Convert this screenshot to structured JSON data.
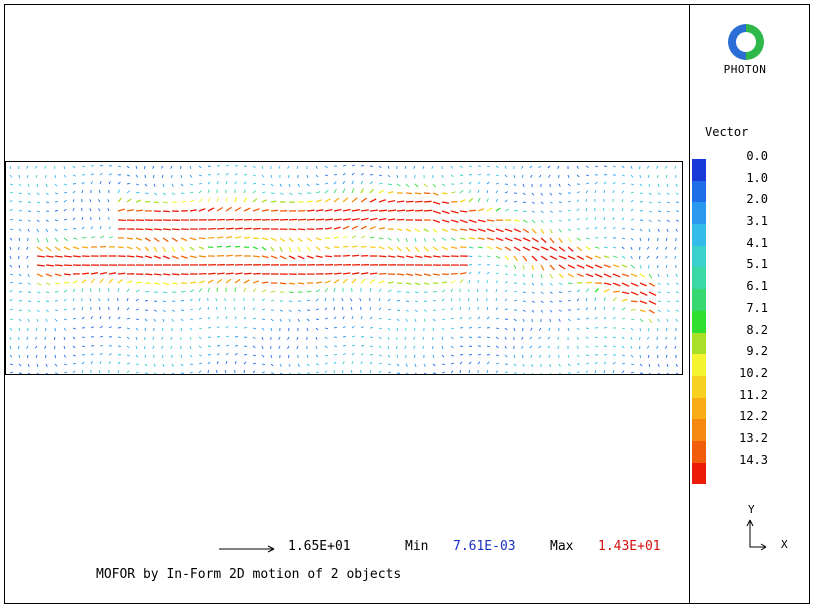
{
  "brand": {
    "logo_text": "PHOTON"
  },
  "legend": {
    "title": "Vector",
    "items": [
      {
        "label": "0.0",
        "color": "#1838d8"
      },
      {
        "label": "1.0",
        "color": "#1f6ee8"
      },
      {
        "label": "2.0",
        "color": "#2a98ee"
      },
      {
        "label": "3.1",
        "color": "#34bce8"
      },
      {
        "label": "4.1",
        "color": "#3ad0cc"
      },
      {
        "label": "5.1",
        "color": "#3ad8a4"
      },
      {
        "label": "6.1",
        "color": "#38d870"
      },
      {
        "label": "7.1",
        "color": "#30e030"
      },
      {
        "label": "8.2",
        "color": "#a8e028"
      },
      {
        "label": "9.2",
        "color": "#f4f430"
      },
      {
        "label": "10.2",
        "color": "#f8d020"
      },
      {
        "label": "11.2",
        "color": "#f8ac18"
      },
      {
        "label": "12.2",
        "color": "#f48810"
      },
      {
        "label": "13.2",
        "color": "#f05e0c"
      },
      {
        "label": "14.3",
        "color": "#ec1c08"
      }
    ]
  },
  "axes": {
    "y": "Y",
    "x": "X"
  },
  "footer": {
    "ref_value": "1.65E+01",
    "min_label": "Min",
    "min_value": "7.61E-03",
    "max_label": "Max",
    "max_value": "1.43E+01",
    "caption": "MOFOR by In-Form  2D motion of 2 objects"
  }
}
